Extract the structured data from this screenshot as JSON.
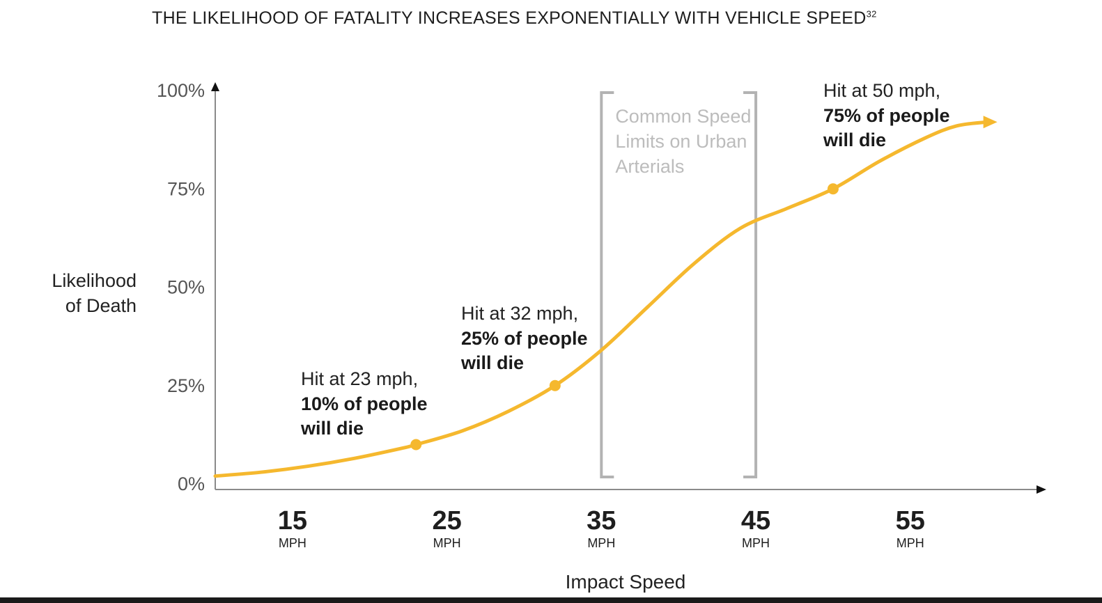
{
  "chart_data": {
    "type": "line",
    "title": "THE LIKELIHOOD OF FATALITY INCREASES EXPONENTIALLY WITH VEHICLE SPEED",
    "title_footnote": "32",
    "xlabel": "Impact Speed",
    "ylabel_lines": [
      "Likelihood",
      "of Death"
    ],
    "x_ticks": [
      15,
      25,
      35,
      45,
      55
    ],
    "x_tick_unit": "MPH",
    "y_ticks": [
      "0%",
      "25%",
      "50%",
      "75%",
      "100%"
    ],
    "y_tick_values": [
      0,
      25,
      50,
      75,
      100
    ],
    "xlim": [
      10,
      62
    ],
    "ylim": [
      0,
      100
    ],
    "grid": false,
    "line_color": "#F5B82E",
    "bracket_color": "#B3B3B3",
    "series": [
      {
        "x": [
          10,
          13,
          16,
          19,
          22,
          23,
          26,
          29,
          32,
          35,
          38,
          41,
          44,
          47,
          50,
          53,
          56,
          58,
          60
        ],
        "y": [
          2,
          3,
          4.5,
          6.5,
          9,
          10,
          13.5,
          18.5,
          25,
          34,
          45,
          56,
          65,
          70,
          75,
          82,
          88,
          91,
          92
        ]
      }
    ],
    "markers": [
      {
        "x": 23,
        "y": 10
      },
      {
        "x": 32,
        "y": 25
      },
      {
        "x": 50,
        "y": 75
      }
    ],
    "annotations": [
      {
        "line1": "Hit at 23 mph,",
        "line2": "10% of people",
        "line3": "will die"
      },
      {
        "line1": "Hit at 32 mph,",
        "line2": "25% of people",
        "line3": "will die"
      },
      {
        "line1": "Hit at 50 mph,",
        "line2": "75% of people",
        "line3": "will die"
      }
    ],
    "speed_limit_band": {
      "x_range": [
        35,
        45
      ],
      "label_lines": [
        "Common Speed",
        "Limits on Urban",
        "Arterials"
      ]
    }
  }
}
